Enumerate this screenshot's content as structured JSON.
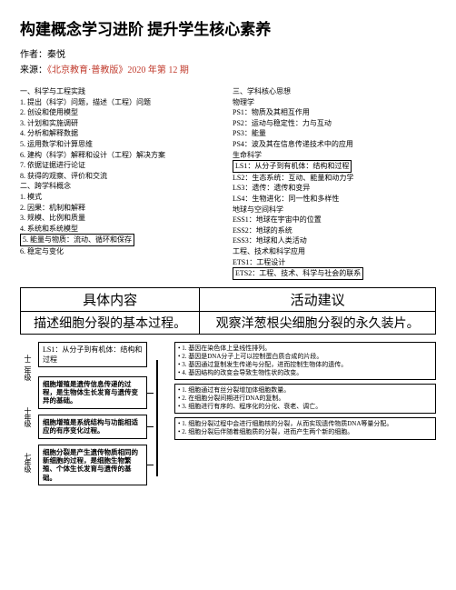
{
  "header": {
    "title": "构建概念学习进阶 提升学生核心素养",
    "author_label": "作者：",
    "author": "秦悦",
    "source_label": "来源：",
    "source": "《北京教育·普教版》2020 年第 12 期"
  },
  "left_col": {
    "h1": "一、科学与工程实践",
    "items": [
      "1. 提出（科学）问题，描述（工程）问题",
      "2. 创设和使用模型",
      "3. 计划和实施调研",
      "4. 分析和解释数据",
      "5. 运用数学和计算思维",
      "6. 建构（科学）解释和设计（工程）解决方案",
      "7. 依据证据进行论证",
      "8. 获得的观察、评价和交流"
    ],
    "h2": "二、跨学科概念",
    "items2": [
      "1. 模式",
      "2. 因果：机制和解释",
      "3. 规模、比例和质量",
      "4. 系统和系统模型"
    ],
    "boxed": "5. 能量与物质：流动、循环和保存",
    "tail": "6. 稳定与变化"
  },
  "right_col": {
    "h1": "三、学科核心思想",
    "sub": "物理学",
    "items": [
      "PS1：物质及其相互作用",
      "PS2：运动与稳定性：力与互动",
      "PS3：能量",
      "PS4：波及其在信息传递技术中的应用"
    ],
    "sub2": "生命科学",
    "boxed": "LS1：从分子到有机体：结构和过程",
    "items2": [
      "LS2：生态系统：互动、能量和动力学",
      "LS3：遗传：遗传和变异",
      "LS4：生物进化：同一性和多样性"
    ],
    "sub3": "地球与空间科学",
    "items3": [
      "ESS1：地球在宇宙中的位置",
      "ESS2：地球的系统",
      "ESS3：地球和人类活动"
    ],
    "sub4": "工程、技术和科学应用",
    "items4": [
      "ETS1：工程设计"
    ],
    "boxed2": "ETS2：工程、技术、科学与社会的联系"
  },
  "table": {
    "h1": "具体内容",
    "h2": "活动建议",
    "c1": "描述细胞分裂的基本过程。",
    "c2": "观察洋葱根尖细胞分裂的永久装片。"
  },
  "diagram": {
    "top_label": "LS1：从分子到有机体：结构和过程",
    "y1": "十二年级",
    "y2": "十年级",
    "y3": "七年级",
    "s1": "细胞增殖是遗传信息传递的过程，是生物体生长发育与遗传变异的基础。",
    "s2": "细胞增殖是系统结构与功能相适应的有序变化过程。",
    "s3": "细胞分裂是产生遗传物质相同的新细胞的过程，是细胞生物繁殖、个体生长发育与遗传的基础。",
    "b1a": "1. 基因在染色体上呈线性排列。",
    "b1b": "2. 基因是DNA分子上可以控制蛋白质合成的片段。",
    "b1c": "3. 基因通过复制发生传递与分配，进而控制生物体的遗传。",
    "b1d": "4. 基因结构的改变会导致生物性状的改变。",
    "b2a": "1. 细胞通过有丝分裂增加体细胞数量。",
    "b2b": "2. 在细胞分裂间期进行DNA的复制。",
    "b2c": "3. 细胞进行有序的、程序化的分化、衰老、调亡。",
    "b3a": "1. 细胞分裂过程中会进行细胞核的分裂，从而实现遗传物质DNA等量分配。",
    "b3b": "2. 细胞分裂后伴随着细胞质的分裂，进而产生两个新的细胞。"
  }
}
